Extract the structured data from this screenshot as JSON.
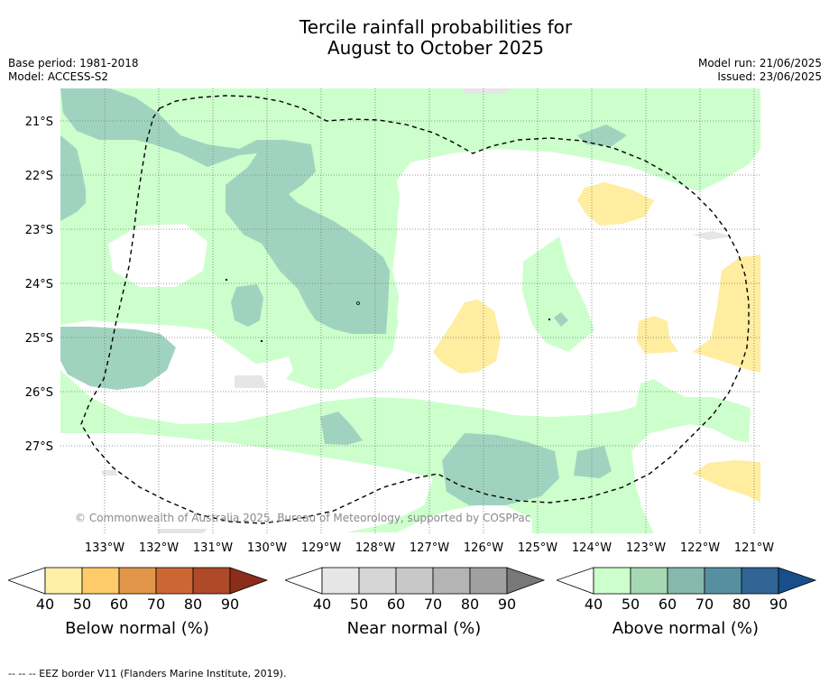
{
  "title_line1": "Tercile rainfall probabilities for",
  "title_line2": "August to October 2025",
  "base_period": "Base period: 1981-2018",
  "model": "Model: ACCESS-S2",
  "model_run": "Model run: 21/06/2025",
  "issued": "Issued: 23/06/2025",
  "copyright": "© Commonwealth of Australia 2025, Bureau of Meteorology, supported by COSPPac",
  "footer": "--  --  -- EEZ border V11 (Flanders Marine Institute, 2019).",
  "map": {
    "lat_labels": [
      "21°S",
      "22°S",
      "23°S",
      "24°S",
      "25°S",
      "26°S",
      "27°S"
    ],
    "lon_labels": [
      "133°W",
      "132°W",
      "131°W",
      "130°W",
      "129°W",
      "128°W",
      "127°W",
      "126°W",
      "125°W",
      "124°W",
      "123°W",
      "122°W",
      "121°W"
    ]
  },
  "colorbars": [
    {
      "title": "Below normal (%)",
      "ticks": [
        "40",
        "50",
        "60",
        "70",
        "80",
        "90"
      ],
      "colors": [
        "#fff0a8",
        "#fecb6a",
        "#e19649",
        "#cd6633",
        "#ae4a27",
        "#8c2d1c"
      ]
    },
    {
      "title": "Near normal (%)",
      "ticks": [
        "40",
        "50",
        "60",
        "70",
        "80",
        "90"
      ],
      "colors": [
        "#e6e6e6",
        "#d6d6d6",
        "#c8c8c8",
        "#b4b4b4",
        "#a0a0a0",
        "#787878"
      ]
    },
    {
      "title": "Above normal (%)",
      "ticks": [
        "40",
        "50",
        "60",
        "70",
        "80",
        "90"
      ],
      "colors": [
        "#ccffcc",
        "#a6d9b3",
        "#86b8ab",
        "#5690a0",
        "#2f6495",
        "#184e8a"
      ]
    }
  ]
}
